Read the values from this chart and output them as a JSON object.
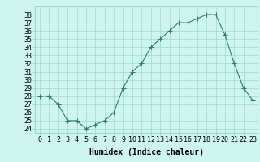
{
  "x": [
    0,
    1,
    2,
    3,
    4,
    5,
    6,
    7,
    8,
    9,
    10,
    11,
    12,
    13,
    14,
    15,
    16,
    17,
    18,
    19,
    20,
    21,
    22,
    23
  ],
  "y": [
    28,
    28,
    27,
    25,
    25,
    24,
    24.5,
    25,
    26,
    29,
    31,
    32,
    34,
    35,
    36,
    37,
    37,
    37.5,
    38,
    38,
    35.5,
    32,
    29,
    27.5
  ],
  "line_color": "#2e7d6e",
  "marker": "+",
  "marker_size": 4,
  "bg_color": "#cef5f0",
  "grid_color": "#9ed8d0",
  "xlabel": "Humidex (Indice chaleur)",
  "xlabel_fontsize": 7,
  "tick_fontsize": 6,
  "ylim": [
    23.5,
    39
  ],
  "xlim": [
    -0.5,
    23.5
  ],
  "yticks": [
    24,
    25,
    26,
    27,
    28,
    29,
    30,
    31,
    32,
    33,
    34,
    35,
    36,
    37,
    38
  ],
  "xticks": [
    0,
    1,
    2,
    3,
    4,
    5,
    6,
    7,
    8,
    9,
    10,
    11,
    12,
    13,
    14,
    15,
    16,
    17,
    18,
    19,
    20,
    21,
    22,
    23
  ]
}
